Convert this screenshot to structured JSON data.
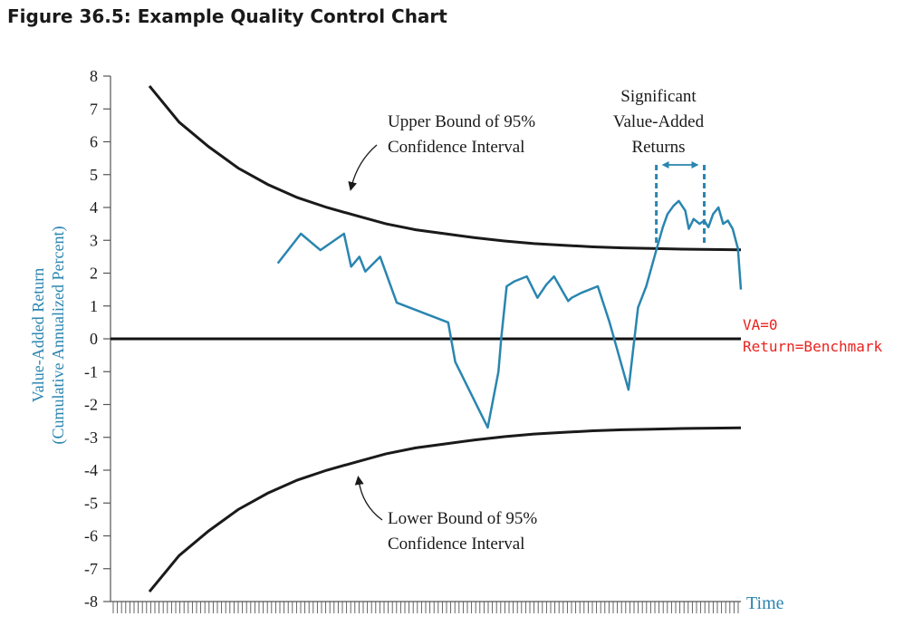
{
  "figure_title": "Figure 36.5: Example Quality Control Chart",
  "colors": {
    "series": "#2a85b0",
    "axis_label": "#2a85b0",
    "bounds": "#1a1a1a",
    "annotation_red": "#e8231f"
  },
  "chart_data": {
    "type": "line",
    "title": "Figure 36.5: Example Quality Control Chart",
    "ylabel_line1": "Value-Added Return",
    "ylabel_line2": "(Cumulative Annualized Percent)",
    "xlabel": "Time",
    "ylim": [
      -8,
      8
    ],
    "xlim": [
      0,
      1
    ],
    "y_ticks": [
      "8",
      "7",
      "6",
      "5",
      "4",
      "3",
      "2",
      "1",
      "0",
      "-1",
      "-2",
      "-3",
      "-4",
      "-5",
      "-6",
      "-7",
      "-8"
    ],
    "grid": false,
    "series": [
      {
        "values_x": [
          0.217,
          0.256,
          0.289,
          0.329,
          0.341,
          0.355,
          0.365,
          0.39,
          0.418,
          0.505,
          0.517,
          0.572,
          0.59,
          0.595,
          0.604,
          0.617,
          0.638,
          0.656,
          0.671,
          0.684,
          0.708,
          0.714,
          0.73,
          0.758,
          0.778,
          0.81,
          0.826,
          0.84,
          0.857,
          0.868,
          0.876,
          0.886,
          0.895,
          0.906,
          0.912,
          0.92,
          0.93,
          0.938,
          0.945,
          0.953,
          0.962,
          0.97,
          0.978,
          0.986,
          0.995,
          1.0
        ],
        "values_y": [
          2.3,
          3.2,
          2.7,
          3.2,
          2.2,
          2.5,
          2.05,
          2.5,
          1.1,
          0.5,
          -0.7,
          -2.7,
          -1.0,
          0.05,
          1.6,
          1.75,
          1.9,
          1.25,
          1.65,
          1.9,
          1.15,
          1.25,
          1.4,
          1.6,
          0.5,
          -1.55,
          0.95,
          1.6,
          2.7,
          3.4,
          3.8,
          4.05,
          4.2,
          3.9,
          3.35,
          3.65,
          3.5,
          3.6,
          3.4,
          3.8,
          4.0,
          3.5,
          3.6,
          3.35,
          2.75,
          1.5
        ]
      },
      {
        "values_x": [
          0.0,
          0.05,
          0.1,
          0.15,
          0.2,
          0.25,
          0.3,
          0.35,
          0.4,
          0.45,
          0.5,
          0.55,
          0.6,
          0.65,
          0.7,
          0.75,
          0.8,
          0.85,
          0.9,
          0.95,
          1.0
        ],
        "values_y": [
          7.7,
          6.6,
          5.85,
          5.2,
          4.7,
          4.3,
          4.0,
          3.75,
          3.5,
          3.32,
          3.2,
          3.08,
          2.98,
          2.9,
          2.85,
          2.8,
          2.77,
          2.75,
          2.73,
          2.72,
          2.71
        ]
      },
      {
        "values_x": [
          0.0,
          0.05,
          0.1,
          0.15,
          0.2,
          0.25,
          0.3,
          0.35,
          0.4,
          0.45,
          0.5,
          0.55,
          0.6,
          0.65,
          0.7,
          0.75,
          0.8,
          0.85,
          0.9,
          0.95,
          1.0
        ],
        "values_y": [
          -7.7,
          -6.6,
          -5.85,
          -5.2,
          -4.7,
          -4.3,
          -4.0,
          -3.75,
          -3.5,
          -3.32,
          -3.2,
          -3.08,
          -2.98,
          -2.9,
          -2.85,
          -2.8,
          -2.77,
          -2.75,
          -2.73,
          -2.72,
          -2.71
        ]
      }
    ],
    "reference_line": {
      "y": 0
    },
    "annotations": {
      "upper_bound_line1": "Upper Bound of 95%",
      "upper_bound_line2": "Confidence Interval",
      "lower_bound_line1": "Lower Bound of 95%",
      "lower_bound_line2": "Confidence Interval",
      "significant_line1": "Significant",
      "significant_line2": "Value-Added",
      "significant_line3": "Returns",
      "va_line1": "VA=0",
      "va_line2": "Return=Benchmark"
    },
    "significant_region_x": [
      0.857,
      0.938
    ]
  }
}
